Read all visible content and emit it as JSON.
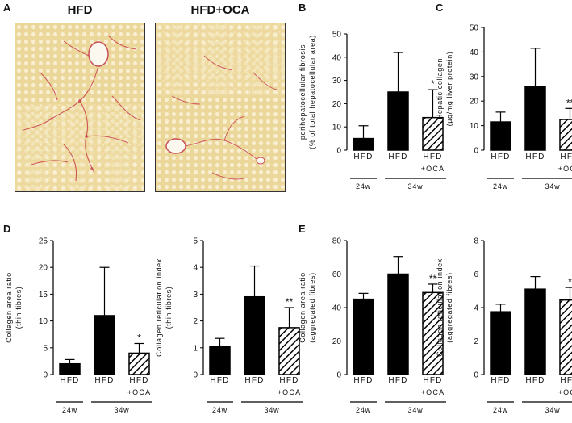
{
  "panels": {
    "A": "A",
    "B": "B",
    "C": "C",
    "D": "D",
    "E": "E"
  },
  "images": [
    {
      "title": "HFD"
    },
    {
      "title": "HFD+OCA"
    }
  ],
  "chart_data": [
    {
      "id": "B",
      "type": "bar",
      "ylabel": [
        "perihepatocellular fibrosis",
        "(% of total hepatocellular area)"
      ],
      "ylim": [
        0,
        50
      ],
      "yticks": [
        0,
        10,
        20,
        30,
        40,
        50
      ],
      "categories": [
        [
          "HFD"
        ],
        [
          "HFD"
        ],
        [
          "HFD",
          "+OCA"
        ]
      ],
      "values": [
        5,
        25,
        14
      ],
      "errors": [
        5.5,
        17,
        12
      ],
      "significance": [
        "",
        "",
        "*"
      ],
      "fills": [
        "solid",
        "solid",
        "hatched"
      ],
      "groups": [
        {
          "label": "24w",
          "bars": [
            0
          ]
        },
        {
          "label": "34w",
          "bars": [
            1,
            2
          ]
        }
      ]
    },
    {
      "id": "C",
      "type": "bar",
      "ylabel": [
        "Hepatic collagen",
        "(µg/mg liver protein)"
      ],
      "ylim": [
        0,
        50
      ],
      "yticks": [
        0,
        10,
        20,
        30,
        40,
        50
      ],
      "categories": [
        [
          "HFD"
        ],
        [
          "HFD"
        ],
        [
          "HFD",
          "+OCA"
        ]
      ],
      "values": [
        11.5,
        26,
        12.5
      ],
      "errors": [
        4,
        15.5,
        4.5
      ],
      "significance": [
        "",
        "",
        "**"
      ],
      "fills": [
        "solid",
        "solid",
        "hatched"
      ],
      "groups": [
        {
          "label": "24w",
          "bars": [
            0
          ]
        },
        {
          "label": "34w",
          "bars": [
            1,
            2
          ]
        }
      ]
    },
    {
      "id": "D1",
      "type": "bar",
      "ylabel": [
        "Collagen area ratio",
        "(thin fibres)"
      ],
      "ylim": [
        0,
        25
      ],
      "yticks": [
        0,
        5,
        10,
        15,
        20,
        25
      ],
      "categories": [
        [
          "HFD"
        ],
        [
          "HFD"
        ],
        [
          "HFD",
          "+OCA"
        ]
      ],
      "values": [
        2,
        11,
        4
      ],
      "errors": [
        0.8,
        9,
        1.8
      ],
      "significance": [
        "",
        "",
        "*"
      ],
      "fills": [
        "solid",
        "solid",
        "hatched"
      ],
      "groups": [
        {
          "label": "24w",
          "bars": [
            0
          ]
        },
        {
          "label": "34w",
          "bars": [
            1,
            2
          ]
        }
      ]
    },
    {
      "id": "D2",
      "type": "bar",
      "ylabel": [
        "Collagen reticulation index",
        "(thin fibres)"
      ],
      "ylim": [
        0,
        5
      ],
      "yticks": [
        0,
        1,
        2,
        3,
        4,
        5
      ],
      "categories": [
        [
          "HFD"
        ],
        [
          "HFD"
        ],
        [
          "HFD",
          "+OCA"
        ]
      ],
      "values": [
        1.05,
        2.9,
        1.75
      ],
      "errors": [
        0.3,
        1.15,
        0.75
      ],
      "significance": [
        "",
        "",
        "**"
      ],
      "fills": [
        "solid",
        "solid",
        "hatched"
      ],
      "groups": [
        {
          "label": "24w",
          "bars": [
            0
          ]
        },
        {
          "label": "34w",
          "bars": [
            1,
            2
          ]
        }
      ]
    },
    {
      "id": "E1",
      "type": "bar",
      "ylabel": [
        "Collagen area ratio",
        "(aggregated fibres)"
      ],
      "ylim": [
        0,
        80
      ],
      "yticks": [
        0,
        20,
        40,
        60,
        80
      ],
      "categories": [
        [
          "HFD"
        ],
        [
          "HFD"
        ],
        [
          "HFD",
          "+OCA"
        ]
      ],
      "values": [
        45,
        60,
        49
      ],
      "errors": [
        3.5,
        10.5,
        5
      ],
      "significance": [
        "",
        "",
        "**"
      ],
      "fills": [
        "solid",
        "solid",
        "hatched"
      ],
      "groups": [
        {
          "label": "24w",
          "bars": [
            0
          ]
        },
        {
          "label": "34w",
          "bars": [
            1,
            2
          ]
        }
      ]
    },
    {
      "id": "E2",
      "type": "bar",
      "ylabel": [
        "Collagen reticulation index",
        "(aggregated fibres)"
      ],
      "ylim": [
        0,
        8
      ],
      "yticks": [
        0,
        2,
        4,
        6,
        8
      ],
      "categories": [
        [
          "HFD"
        ],
        [
          "HFD"
        ],
        [
          "HFD",
          "+OCA"
        ]
      ],
      "values": [
        3.75,
        5.1,
        4.45
      ],
      "errors": [
        0.45,
        0.75,
        0.75
      ],
      "significance": [
        "",
        "",
        "*"
      ],
      "fills": [
        "solid",
        "solid",
        "hatched"
      ],
      "groups": [
        {
          "label": "24w",
          "bars": [
            0
          ]
        },
        {
          "label": "34w",
          "bars": [
            1,
            2
          ]
        }
      ]
    }
  ]
}
